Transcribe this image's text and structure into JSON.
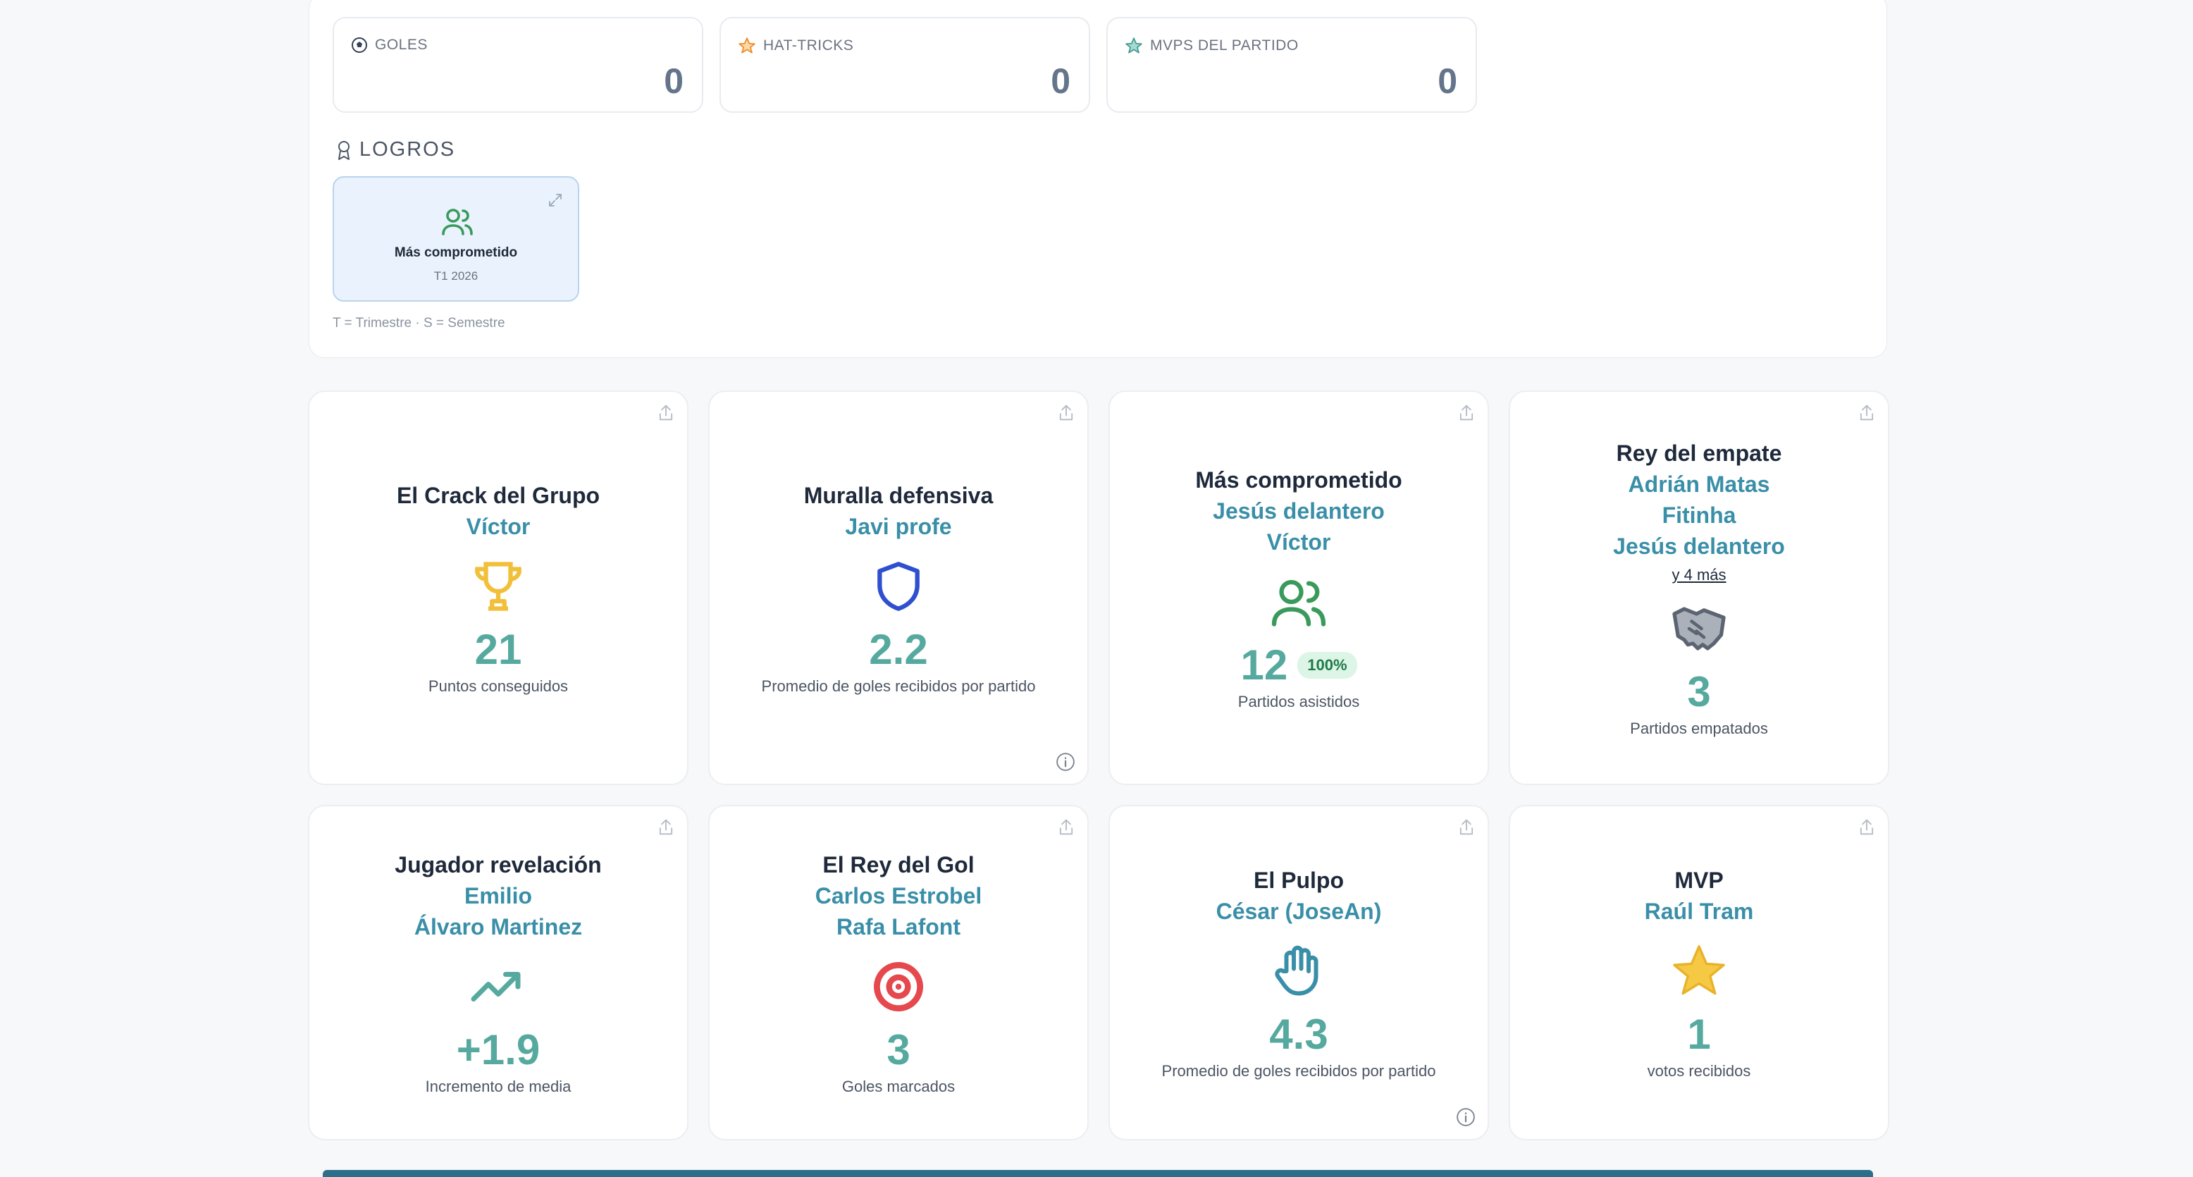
{
  "stats": [
    {
      "label": "GOLES",
      "value": "0",
      "icon": "soccer-ball-icon"
    },
    {
      "label": "HAT-TRICKS",
      "value": "0",
      "icon": "star-icon"
    },
    {
      "label": "MVPS DEL PARTIDO",
      "value": "0",
      "icon": "star-icon"
    }
  ],
  "achievements": {
    "title": "LOGROS",
    "items": [
      {
        "title": "Más comprometido",
        "period": "T1 2026",
        "icon": "users-icon"
      }
    ],
    "legend": "T = Trimestre · S = Semestre"
  },
  "awards": [
    {
      "title": "El Crack del Grupo",
      "names": [
        "Víctor"
      ],
      "more": "",
      "value": "21",
      "badge": "",
      "desc": "Puntos conseguidos",
      "icon": "trophy-icon"
    },
    {
      "title": "Muralla defensiva",
      "names": [
        "Javi profe"
      ],
      "more": "",
      "value": "2.2",
      "badge": "",
      "desc": "Promedio de goles recibidos por partido",
      "icon": "shield-icon"
    },
    {
      "title": "Más comprometido",
      "names": [
        "Jesús delantero",
        "Víctor"
      ],
      "more": "",
      "value": "12",
      "badge": "100%",
      "desc": "Partidos asistidos",
      "icon": "users-icon"
    },
    {
      "title": "Rey del empate",
      "names": [
        "Adrián Matas",
        "Fitinha",
        "Jesús delantero"
      ],
      "more": "y 4 más",
      "value": "3",
      "badge": "",
      "desc": "Partidos empatados",
      "icon": "handshake-icon"
    },
    {
      "title": "Jugador revelación",
      "names": [
        "Emilio",
        "Álvaro Martinez"
      ],
      "more": "",
      "value": "+1.9",
      "badge": "",
      "desc": "Incremento de media",
      "icon": "trending-up-icon"
    },
    {
      "title": "El Rey del Gol",
      "names": [
        "Carlos Estrobel",
        "Rafa Lafont"
      ],
      "more": "",
      "value": "3",
      "badge": "",
      "desc": "Goles marcados",
      "icon": "target-icon"
    },
    {
      "title": "El Pulpo",
      "names": [
        "César (JoseAn)"
      ],
      "more": "",
      "value": "4.3",
      "badge": "",
      "desc": "Promedio de goles recibidos por partido",
      "icon": "hand-icon"
    },
    {
      "title": "MVP",
      "names": [
        "Raúl Tram"
      ],
      "more": "",
      "value": "1",
      "badge": "",
      "desc": "votos recibidos",
      "icon": "star-icon"
    }
  ]
}
